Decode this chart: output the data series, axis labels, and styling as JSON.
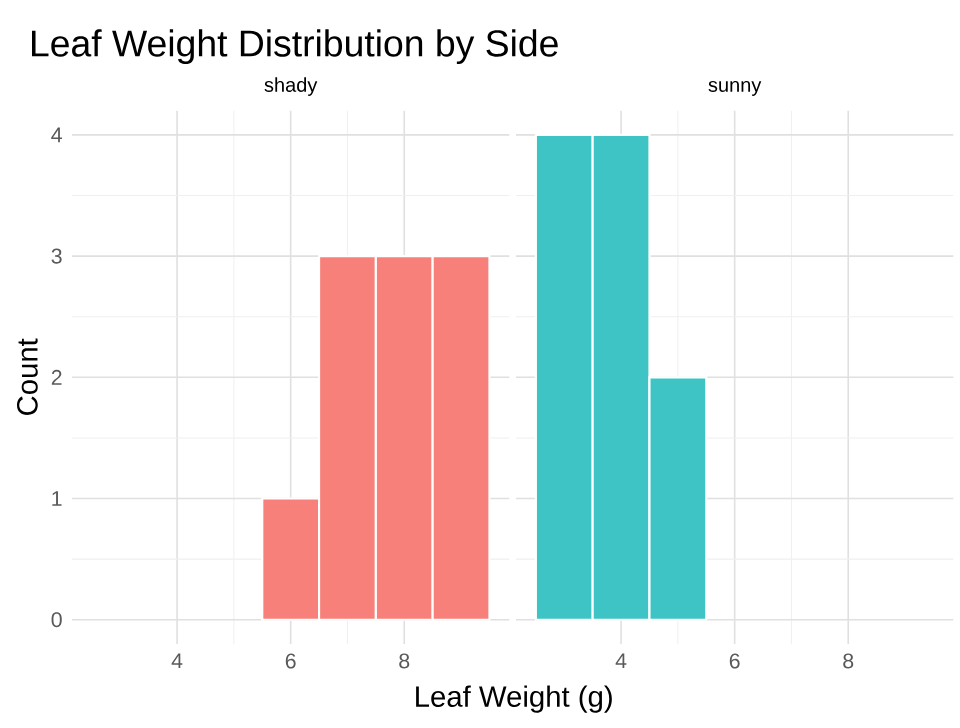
{
  "chart_data": [
    {
      "type": "histogram",
      "title": "Leaf Weight Distribution by Side",
      "subtitle": "shady",
      "xlabel": "Leaf Weight (g)",
      "ylabel": "Count",
      "bins": [
        5.5,
        6.5,
        7.5,
        8.5,
        9.5
      ],
      "values": [
        1,
        3,
        3,
        3
      ],
      "color": "#f8807a",
      "xlim": [
        2.15,
        9.85
      ],
      "ylim": [
        -0.2,
        4.2
      ],
      "xticks": [
        4,
        6,
        8
      ],
      "yticks": [
        0,
        1,
        2,
        3,
        4
      ],
      "grid": true
    },
    {
      "type": "histogram",
      "subtitle": "sunny",
      "bins": [
        2.5,
        3.5,
        4.5,
        5.5
      ],
      "values": [
        4,
        4,
        2
      ],
      "color": "#3fc4c6",
      "xlim": [
        2.15,
        9.85
      ],
      "ylim": [
        -0.2,
        4.2
      ],
      "xticks": [
        4,
        6,
        8
      ],
      "yticks": [
        0,
        1,
        2,
        3,
        4
      ],
      "grid": true,
      "tick_labels": "x"
    }
  ]
}
